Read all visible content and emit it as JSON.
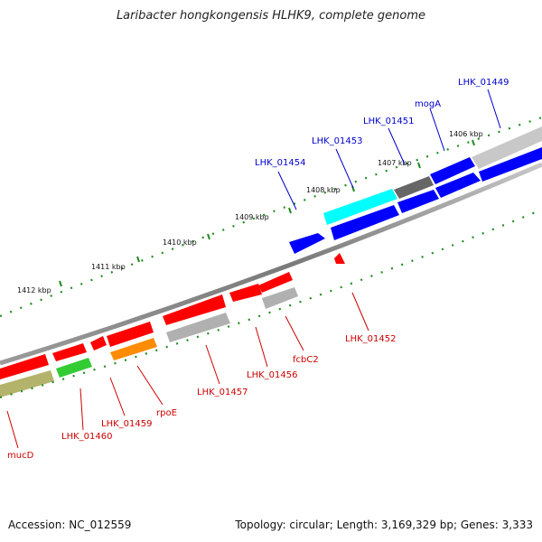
{
  "title": "Laribacter hongkongensis HLHK9, complete genome",
  "footer": {
    "accession": "Accession: NC_012559",
    "topology": "Topology: circular; Length: 3,169,329 bp; Genes: 3,333"
  },
  "kbp_labels": [
    "1406 kbp",
    "1407 kbp",
    "1408 kbp",
    "1409 kbp",
    "1410 kbp",
    "1411 kbp",
    "1412 kbp"
  ],
  "forward_gene_labels": [
    "LHK_01449",
    "mogA",
    "LHK_01451",
    "LHK_01453",
    "LHK_01454"
  ],
  "reverse_gene_labels": [
    "LHK_01452",
    "fcbC2",
    "LHK_01456",
    "LHK_01457",
    "rpoE",
    "LHK_01459",
    "LHK_01460",
    "mucD"
  ],
  "colors": {
    "forward_label": "#0000cc",
    "reverse_label": "#cc0000",
    "forward_gene": "#0000ff",
    "reverse_gene": "#ff0000",
    "backbone": "#8a8a8a",
    "tick": "#228b22",
    "cyan_gene": "#00ffff",
    "orange_gene": "#ff8c00",
    "green_gene": "#33cc33",
    "olive_gene": "#b3b36b",
    "gray_gene": "#b0b0b0",
    "dark_gray_gene": "#666666"
  }
}
